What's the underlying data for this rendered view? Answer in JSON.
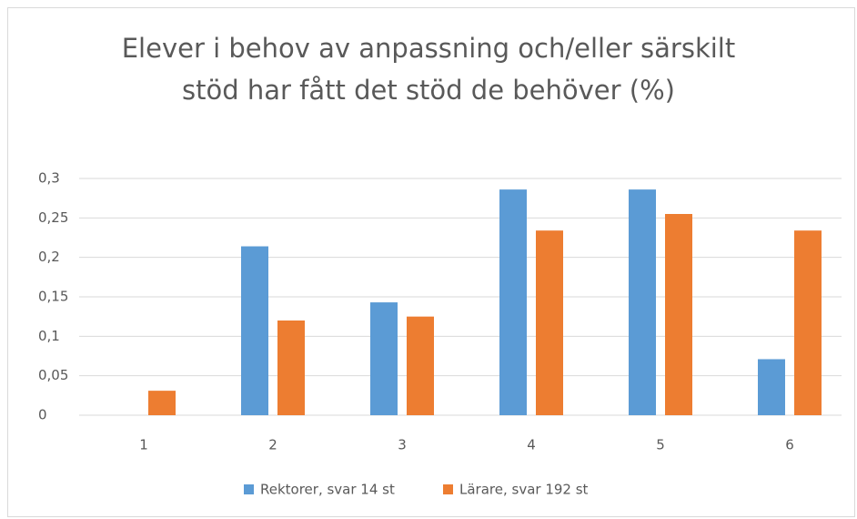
{
  "chart_data": {
    "type": "bar",
    "title": "Elever i behov av anpassning och/eller särskilt stöd har fått det stöd de behöver (%)",
    "categories": [
      "1",
      "2",
      "3",
      "4",
      "5",
      "6"
    ],
    "series": [
      {
        "name": "Rektorer, svar 14 st",
        "color": "#5b9bd5",
        "values": [
          0,
          0.214,
          0.143,
          0.286,
          0.286,
          0.071
        ]
      },
      {
        "name": "Lärare, svar 192 st",
        "color": "#ed7d31",
        "values": [
          0.031,
          0.12,
          0.125,
          0.234,
          0.255,
          0.234
        ]
      }
    ],
    "ylim": [
      0,
      0.3
    ],
    "yticks": [
      0,
      {
        "value": 0.05,
        "label": "0,05"
      },
      {
        "value": 0.1,
        "label": "0,1"
      },
      {
        "value": 0.15,
        "label": "0,15"
      },
      {
        "value": 0.2,
        "label": "0,2"
      },
      {
        "value": 0.25,
        "label": "0,25"
      },
      {
        "value": 0.3,
        "label": "0,3"
      }
    ],
    "grid": true,
    "legend": "bottom"
  }
}
